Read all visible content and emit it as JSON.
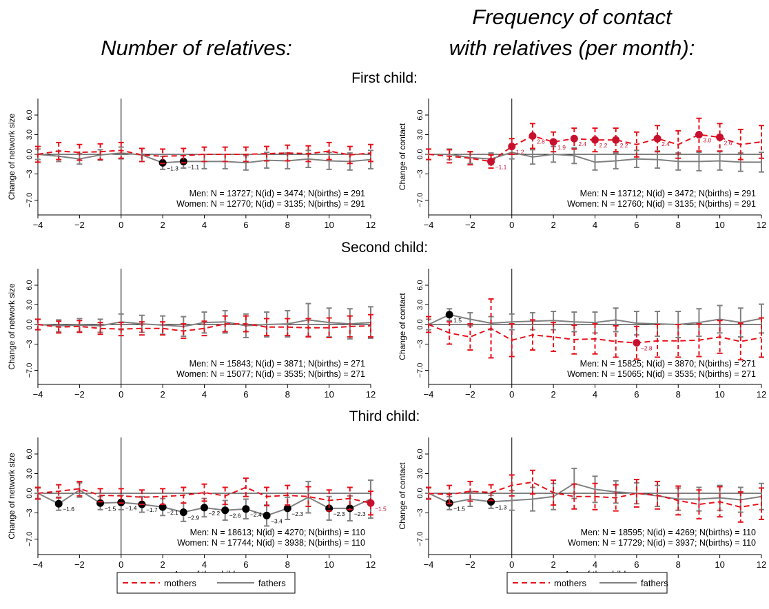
{
  "header": {
    "left_title": "Number of relatives:",
    "right_title_line1": "Frequency of contact",
    "right_title_line2": "with relatives (per month):"
  },
  "rows": [
    {
      "label": "First child:"
    },
    {
      "label": "Second child:"
    },
    {
      "label": "Third child:"
    }
  ],
  "legend": {
    "mothers": "mothers",
    "fathers": "fathers"
  },
  "colors": {
    "mothers": "#e8101a",
    "fathers": "#808080",
    "sig_mothers": "#c8102e",
    "sig_fathers": "#000000"
  },
  "chart_data": [
    {
      "type": "line",
      "panel": "first-child-network",
      "ylabel": "Change of network size",
      "x": [
        -4,
        -3,
        -2,
        -1,
        0,
        1,
        2,
        3,
        4,
        5,
        6,
        7,
        8,
        9,
        10,
        11,
        12
      ],
      "x_ticks": [
        "−4",
        "−2",
        "0",
        "2",
        "4",
        "6",
        "8",
        "10",
        "12"
      ],
      "y_ticks": [
        "−7.0",
        "−3",
        "0.0",
        "3.0",
        "6.0"
      ],
      "ylim": [
        -7,
        6
      ],
      "notes": [
        "Men: N = 13727; N(id) = 3474; N(births) = 291",
        "Women: N = 12770; N(id) = 3135; N(births) = 291"
      ],
      "series": [
        {
          "name": "mothers",
          "values": [
            0,
            0.5,
            0.3,
            0.4,
            0.6,
            -0.1,
            -0.3,
            -0.2,
            0,
            0,
            0,
            0.1,
            0.2,
            0.1,
            0.5,
            -0.1,
            0.2
          ],
          "ci": [
            1.2,
            1.3,
            1.2,
            1.2,
            1.2,
            1.0,
            1.1,
            1.1,
            1.1,
            1.1,
            1.1,
            1.1,
            1.2,
            1.2,
            1.3,
            1.3,
            1.3
          ],
          "labels": [
            null,
            null,
            null,
            null,
            null,
            null,
            null,
            null,
            null,
            null,
            null,
            null,
            null,
            null,
            null,
            null,
            null
          ]
        },
        {
          "name": "fathers",
          "values": [
            0,
            -0.3,
            -0.7,
            -0.1,
            0.2,
            -0.1,
            -1.3,
            -1.1,
            -1.1,
            -1.1,
            -1.3,
            -0.9,
            -1.0,
            -0.7,
            -1.0,
            -1.1,
            -0.8
          ],
          "ci": [
            0.8,
            0.8,
            0.8,
            0.8,
            0.9,
            1.0,
            1.0,
            1.0,
            1.1,
            1.1,
            1.1,
            1.2,
            1.2,
            1.3,
            1.3,
            1.3,
            1.4
          ],
          "labels": [
            null,
            null,
            null,
            null,
            null,
            null,
            "−1.3",
            "−1.1",
            null,
            null,
            null,
            null,
            null,
            null,
            null,
            null,
            null
          ]
        }
      ]
    },
    {
      "type": "line",
      "panel": "first-child-contact",
      "ylabel": "Change of contact",
      "x": [
        -4,
        -3,
        -2,
        -1,
        0,
        1,
        2,
        3,
        4,
        5,
        6,
        7,
        8,
        9,
        10,
        11,
        12
      ],
      "x_ticks": [
        "−4",
        "−2",
        "0",
        "2",
        "4",
        "6",
        "8",
        "10",
        "12"
      ],
      "y_ticks": [
        "−7.0",
        "−3",
        "0.0",
        "3.0",
        "6.0"
      ],
      "ylim": [
        -7,
        6
      ],
      "notes": [
        "Men: N = 13712; N(id) = 3472; N(births) = 291",
        "Women: N = 12760; N(id) = 3135; N(births) = 291"
      ],
      "series": [
        {
          "name": "mothers",
          "values": [
            0,
            -0.3,
            -0.6,
            -1.1,
            1.2,
            2.8,
            1.9,
            2.4,
            2.2,
            2.2,
            1.5,
            2.4,
            1.5,
            3.0,
            2.6,
            1.5,
            1.9
          ],
          "ci": [
            0.8,
            1.0,
            1.0,
            1.0,
            1.2,
            1.9,
            1.5,
            1.6,
            1.8,
            1.8,
            1.9,
            2.0,
            2.1,
            2.5,
            2.1,
            2.3,
            2.5
          ],
          "labels": [
            null,
            null,
            null,
            "−1.1",
            "1.2",
            "2.8",
            "1.9",
            "2.4",
            "2.2",
            "2.2",
            null,
            "2.4",
            null,
            "3.0",
            "2.6",
            null,
            null
          ]
        },
        {
          "name": "fathers",
          "values": [
            0,
            0,
            -0.5,
            -0.7,
            0.3,
            -0.4,
            0,
            -0.2,
            -1.2,
            -1.0,
            -0.7,
            -0.8,
            -1.1,
            -1.1,
            -1.0,
            -1.2,
            -1.2
          ],
          "ci": [
            0.8,
            0.8,
            0.9,
            0.9,
            1.0,
            1.1,
            1.2,
            1.2,
            1.2,
            1.2,
            1.3,
            1.3,
            1.3,
            1.4,
            1.4,
            1.4,
            1.5
          ],
          "labels": [
            null,
            null,
            null,
            null,
            null,
            null,
            null,
            null,
            null,
            null,
            null,
            null,
            null,
            null,
            null,
            null,
            null
          ]
        }
      ]
    },
    {
      "type": "line",
      "panel": "second-child-network",
      "ylabel": "Change of network size",
      "x": [
        -4,
        -3,
        -2,
        -1,
        0,
        1,
        2,
        3,
        4,
        5,
        6,
        7,
        8,
        9,
        10,
        11,
        12
      ],
      "x_ticks": [
        "−4",
        "−2",
        "0",
        "2",
        "4",
        "6",
        "8",
        "10",
        "12"
      ],
      "y_ticks": [
        "−7.0",
        "−3",
        "0.0",
        "3.0",
        "6.0"
      ],
      "ylim": [
        -7,
        6
      ],
      "notes": [
        "Men: N = 15843; N(id) = 3871; N(births) = 271",
        "Women: N = 15077; N(id) = 3535; N(births) = 271"
      ],
      "series": [
        {
          "name": "mothers",
          "values": [
            0,
            -0.4,
            -0.3,
            -0.6,
            -0.7,
            -0.6,
            -0.6,
            -1.0,
            -0.6,
            0.1,
            0.1,
            -0.4,
            -0.4,
            -0.5,
            -0.5,
            -0.3,
            -0.2
          ],
          "ci": [
            0.8,
            0.9,
            0.9,
            0.9,
            1.0,
            1.0,
            1.0,
            1.1,
            1.1,
            1.2,
            1.2,
            1.3,
            1.3,
            1.4,
            1.5,
            1.6,
            1.7
          ],
          "labels": [
            null,
            null,
            null,
            null,
            null,
            null,
            null,
            null,
            null,
            null,
            null,
            null,
            null,
            null,
            null,
            null,
            null
          ]
        },
        {
          "name": "fathers",
          "values": [
            0,
            -0.2,
            -0.1,
            -0.2,
            0.4,
            0.1,
            -0.1,
            -0.3,
            0.3,
            0.4,
            -0.2,
            0,
            0.1,
            0.7,
            0.3,
            0.1,
            0.3
          ],
          "ci": [
            0.8,
            0.9,
            1.0,
            1.0,
            1.2,
            1.3,
            1.4,
            1.5,
            1.6,
            1.7,
            1.8,
            1.9,
            2.0,
            2.5,
            2.2,
            2.3,
            2.4
          ],
          "labels": [
            null,
            null,
            null,
            null,
            null,
            null,
            null,
            null,
            null,
            null,
            null,
            null,
            null,
            null,
            null,
            null,
            null
          ]
        }
      ]
    },
    {
      "type": "line",
      "panel": "second-child-contact",
      "ylabel": "Change of contact",
      "x": [
        -4,
        -3,
        -2,
        -1,
        0,
        1,
        2,
        3,
        4,
        5,
        6,
        7,
        8,
        9,
        10,
        11,
        12
      ],
      "x_ticks": [
        "−4",
        "−2",
        "0",
        "2",
        "4",
        "6",
        "8",
        "10",
        "12"
      ],
      "y_ticks": [
        "−7.0",
        "−3",
        "0.0",
        "3.0",
        "6.0"
      ],
      "ylim": [
        -7,
        6
      ],
      "notes": [
        "Men: N = 15825; N(id) = 3870; N(births) = 271",
        "Women: N = 15065; N(id) = 3535; N(births) = 271"
      ],
      "series": [
        {
          "name": "mothers",
          "values": [
            0,
            -1.3,
            -1.9,
            -0.6,
            -2.4,
            -1.6,
            -1.9,
            -2.3,
            -2.2,
            -2.6,
            -2.8,
            -2.5,
            -2.5,
            -2.4,
            -1.9,
            -2.6,
            -2.0
          ],
          "ci": [
            1.2,
            1.7,
            2.0,
            4.5,
            2.5,
            2.3,
            2.2,
            2.2,
            2.3,
            2.4,
            2.5,
            2.5,
            2.5,
            2.5,
            2.5,
            2.8,
            3.0
          ],
          "labels": [
            null,
            null,
            null,
            null,
            null,
            null,
            null,
            null,
            null,
            null,
            "−2.8",
            null,
            null,
            null,
            null,
            null,
            null
          ]
        },
        {
          "name": "fathers",
          "values": [
            0,
            1.5,
            0.8,
            0.2,
            0.4,
            0.5,
            0.6,
            0.4,
            0.3,
            0.7,
            0.2,
            0.1,
            0,
            0.3,
            0.8,
            0.3,
            0.9
          ],
          "ci": [
            0.8,
            0.9,
            1.0,
            1.0,
            1.2,
            1.3,
            1.4,
            1.5,
            1.6,
            1.8,
            1.8,
            1.9,
            2.0,
            2.1,
            2.1,
            2.2,
            2.2
          ],
          "labels": [
            null,
            "1.5",
            null,
            null,
            null,
            null,
            null,
            null,
            null,
            null,
            null,
            null,
            null,
            null,
            null,
            null,
            null
          ]
        }
      ]
    },
    {
      "type": "line",
      "panel": "third-child-network",
      "ylabel": "Change of network size",
      "xlabel": "Age of the child",
      "x": [
        -4,
        -3,
        -2,
        -1,
        0,
        1,
        2,
        3,
        4,
        5,
        6,
        7,
        8,
        9,
        10,
        11,
        12
      ],
      "x_ticks": [
        "−4",
        "−2",
        "0",
        "2",
        "4",
        "6",
        "8",
        "10",
        "12"
      ],
      "y_ticks": [
        "−7.0",
        "−3",
        "0.0",
        "3.0",
        "6.0"
      ],
      "ylim": [
        -7,
        6
      ],
      "notes": [
        "Men: N = 18613; N(id) = 4270; N(births) = 110",
        "Women: N = 17744; N(id) = 3938; N(births) = 110"
      ],
      "series": [
        {
          "name": "mothers",
          "values": [
            0,
            0.3,
            0.7,
            -0.3,
            -0.4,
            -0.6,
            -0.5,
            -0.3,
            0.1,
            -0.4,
            0.9,
            -0.5,
            -0.3,
            -0.5,
            -1.1,
            -0.8,
            -1.5
          ],
          "ci": [
            0.9,
            1.0,
            1.1,
            1.0,
            1.1,
            1.1,
            1.2,
            1.2,
            1.3,
            1.3,
            1.4,
            1.4,
            1.5,
            1.5,
            1.6,
            1.7,
            1.8
          ],
          "labels": [
            null,
            null,
            null,
            null,
            null,
            null,
            null,
            null,
            null,
            null,
            null,
            null,
            null,
            null,
            null,
            null,
            "−1.5"
          ]
        },
        {
          "name": "fathers",
          "values": [
            0,
            -1.6,
            0.5,
            -1.5,
            -1.4,
            -1.7,
            -2.1,
            -2.9,
            -2.2,
            -2.6,
            -2.4,
            -3.4,
            -2.3,
            -0.6,
            -2.3,
            -2.3,
            -0.9
          ],
          "ci": [
            0.8,
            1.0,
            1.1,
            1.0,
            1.1,
            1.2,
            1.3,
            1.4,
            1.4,
            1.5,
            1.5,
            1.6,
            1.7,
            2.4,
            1.8,
            1.9,
            2.9
          ],
          "labels": [
            null,
            "−1.6",
            null,
            "−1.5",
            "−1.4",
            "−1.7",
            "−2.1",
            "−2.9",
            "−2.2",
            "−2.6",
            "−2.4",
            "−3.4",
            "−2.3",
            null,
            "−2.3",
            "−2.3",
            null
          ]
        }
      ]
    },
    {
      "type": "line",
      "panel": "third-child-contact",
      "ylabel": "Change of contact",
      "xlabel": "Age of the child",
      "x": [
        -4,
        -3,
        -2,
        -1,
        0,
        1,
        2,
        3,
        4,
        5,
        6,
        7,
        8,
        9,
        10,
        11,
        12
      ],
      "x_ticks": [
        "−4",
        "−2",
        "0",
        "2",
        "4",
        "6",
        "8",
        "10",
        "12"
      ],
      "y_ticks": [
        "−7.0",
        "−3",
        "0.0",
        "3.0",
        "6.0"
      ],
      "ylim": [
        -7,
        6
      ],
      "notes": [
        "Men: N = 18595; N(id) = 4269; N(births) = 110",
        "Women: N = 17729; N(id) = 3937; N(births) = 110"
      ],
      "series": [
        {
          "name": "mothers",
          "values": [
            0,
            -0.2,
            0.3,
            0.1,
            1.2,
            1.7,
            0.1,
            -0.5,
            -0.5,
            -0.7,
            0,
            -0.3,
            -1.1,
            -1.7,
            -1.3,
            -2.1,
            -1.6
          ],
          "ci": [
            0.9,
            1.4,
            1.5,
            1.2,
            1.6,
            1.8,
            1.9,
            1.9,
            2.0,
            2.0,
            2.1,
            2.1,
            2.2,
            2.2,
            2.3,
            2.3,
            2.4
          ],
          "labels": [
            null,
            null,
            null,
            null,
            null,
            null,
            null,
            null,
            null,
            null,
            null,
            null,
            null,
            null,
            null,
            null,
            null
          ]
        },
        {
          "name": "fathers",
          "values": [
            0,
            -1.5,
            -0.9,
            -1.3,
            -1.1,
            -0.9,
            -0.5,
            1.5,
            0.6,
            0.2,
            0,
            -0.4,
            -0.9,
            -0.9,
            -0.7,
            -1.0,
            -0.5
          ],
          "ci": [
            0.8,
            1.0,
            1.1,
            1.0,
            1.5,
            1.8,
            2.0,
            2.3,
            2.0,
            1.7,
            1.6,
            1.6,
            1.7,
            1.8,
            1.9,
            1.9,
            2.0
          ],
          "labels": [
            null,
            "−1.5",
            null,
            "−1.3",
            null,
            null,
            null,
            null,
            null,
            null,
            null,
            null,
            null,
            null,
            null,
            null,
            null
          ]
        }
      ]
    }
  ]
}
